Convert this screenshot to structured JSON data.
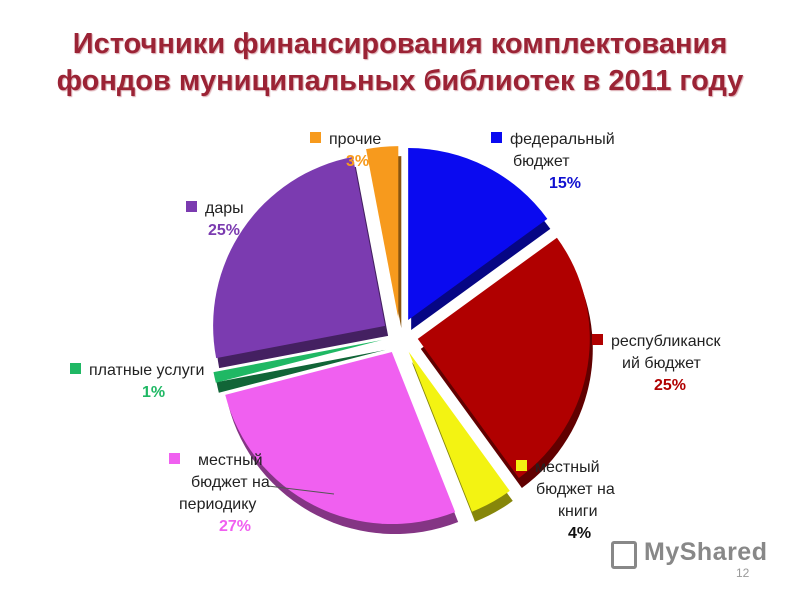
{
  "title_line1": "Источники финансирования комплектования",
  "title_line2": "фондов муниципальных библиотек в 2011 году",
  "watermark": "MyShared",
  "page_number": "12",
  "chart_data": {
    "type": "pie",
    "title": "Источники финансирования комплектования фондов муниципальных библиотек в 2011 году",
    "categories": [
      "федеральный бюджет",
      "республиканский бюджет",
      "местный бюджет на книги",
      "местный бюджет на периодику",
      "платные услуги",
      "дары",
      "прочие"
    ],
    "values": [
      15,
      25,
      4,
      27,
      1,
      25,
      3
    ],
    "colors": [
      "#0a0af0",
      "#b00000",
      "#f3f312",
      "#f060f0",
      "#1fb864",
      "#7b3bb0",
      "#f79a1d"
    ],
    "label_texts": [
      [
        "федеральный",
        "бюджет"
      ],
      [
        "республиканск",
        "ий бюджет"
      ],
      [
        "местный",
        "бюджет на",
        "книги"
      ],
      [
        "местный",
        "бюджет на",
        "периодику"
      ],
      [
        "платные услуги"
      ],
      [
        "дары"
      ],
      [
        "прочие"
      ]
    ],
    "pct_labels": [
      "15%",
      "25%",
      "4%",
      "27%",
      "1%",
      "25%",
      "3%"
    ],
    "pct_colors": [
      "#1010d0",
      "#b00000",
      "#111111",
      "#f060f0",
      "#1fb864",
      "#7b3bb0",
      "#f79a1d"
    ],
    "legend": "labels beside slices",
    "exploded": true
  }
}
